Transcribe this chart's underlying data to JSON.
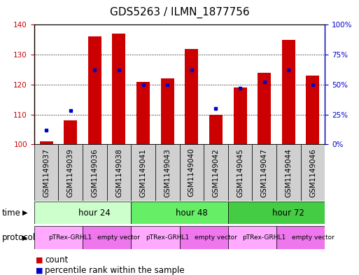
{
  "title": "GDS5263 / ILMN_1877756",
  "samples": [
    "GSM1149037",
    "GSM1149039",
    "GSM1149036",
    "GSM1149038",
    "GSM1149041",
    "GSM1149043",
    "GSM1149040",
    "GSM1149042",
    "GSM1149045",
    "GSM1149047",
    "GSM1149044",
    "GSM1149046"
  ],
  "counts": [
    101,
    108,
    136,
    137,
    121,
    122,
    132,
    110,
    119,
    124,
    135,
    123
  ],
  "percentiles": [
    12,
    28,
    62,
    62,
    50,
    50,
    62,
    30,
    47,
    52,
    62,
    50
  ],
  "ylim_left": [
    100,
    140
  ],
  "ylim_right": [
    0,
    100
  ],
  "bar_color": "#cc0000",
  "dot_color": "#0000cc",
  "bar_width": 0.55,
  "time_groups": [
    {
      "label": "hour 24",
      "start": 0,
      "end": 4,
      "color": "#ccffcc"
    },
    {
      "label": "hour 48",
      "start": 4,
      "end": 8,
      "color": "#66ee66"
    },
    {
      "label": "hour 72",
      "start": 8,
      "end": 12,
      "color": "#44cc44"
    }
  ],
  "protocol_groups": [
    {
      "label": "pTRex-GRHL1",
      "start": 0,
      "end": 2,
      "color": "#ffaaff"
    },
    {
      "label": "empty vector",
      "start": 2,
      "end": 4,
      "color": "#ee77ee"
    },
    {
      "label": "pTRex-GRHL1",
      "start": 4,
      "end": 6,
      "color": "#ffaaff"
    },
    {
      "label": "empty vector",
      "start": 6,
      "end": 8,
      "color": "#ee77ee"
    },
    {
      "label": "pTRex-GRHL1",
      "start": 8,
      "end": 10,
      "color": "#ffaaff"
    },
    {
      "label": "empty vector",
      "start": 10,
      "end": 12,
      "color": "#ee77ee"
    }
  ],
  "time_label": "time",
  "protocol_label": "protocol",
  "legend_count_label": "count",
  "legend_percentile_label": "percentile rank within the sample",
  "title_fontsize": 11,
  "tick_fontsize": 7.5,
  "label_fontsize": 8.5,
  "row_label_fontsize": 8.5,
  "sample_label_fontsize": 7.5
}
